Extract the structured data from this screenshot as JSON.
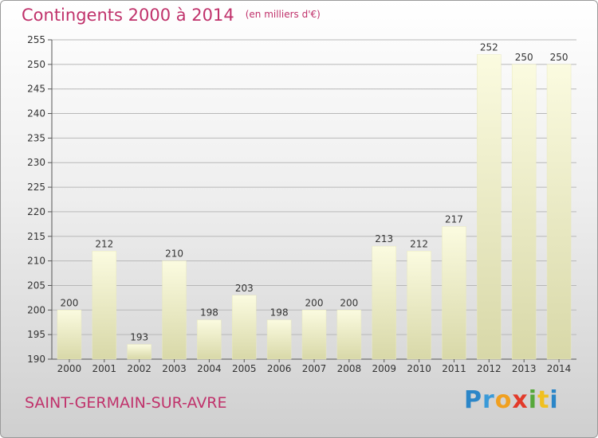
{
  "header": {
    "title": "Contingents 2000 à 2014",
    "subtitle": "(en milliers d'€)"
  },
  "footer": {
    "commune": "SAINT-GERMAIN-SUR-AVRE",
    "logo": "Proxiti"
  },
  "chart_data": {
    "type": "bar",
    "title": "Contingents 2000 à 2014",
    "subtitle": "(en milliers d'€)",
    "categories": [
      "2000",
      "2001",
      "2002",
      "2003",
      "2004",
      "2005",
      "2006",
      "2007",
      "2008",
      "2009",
      "2010",
      "2011",
      "2012",
      "2013",
      "2014"
    ],
    "values": [
      200,
      212,
      193,
      210,
      198,
      203,
      198,
      200,
      200,
      213,
      212,
      217,
      252,
      250,
      250
    ],
    "ylim": [
      190,
      255
    ],
    "yticks": [
      190,
      195,
      200,
      205,
      210,
      215,
      220,
      225,
      230,
      235,
      240,
      245,
      250,
      255
    ],
    "grid": true,
    "bar_color": "#f5f5cc",
    "xlabel": "",
    "ylabel": ""
  }
}
